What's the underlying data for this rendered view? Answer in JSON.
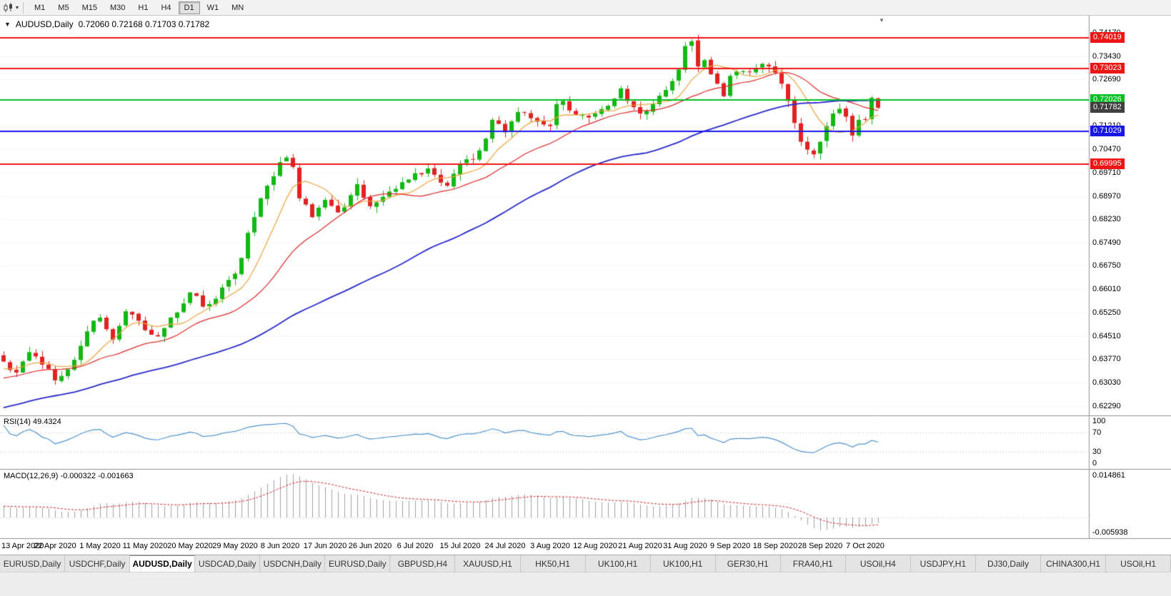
{
  "toolbar": {
    "chart_type_icon": "candlestick-chart",
    "dropdown_caret": "▾",
    "timeframes": [
      {
        "label": "M1",
        "active": false
      },
      {
        "label": "M5",
        "active": false
      },
      {
        "label": "M15",
        "active": false
      },
      {
        "label": "M30",
        "active": false
      },
      {
        "label": "H1",
        "active": false
      },
      {
        "label": "H4",
        "active": false
      },
      {
        "label": "D1",
        "active": true
      },
      {
        "label": "W1",
        "active": false
      },
      {
        "label": "MN",
        "active": false
      }
    ]
  },
  "chart_header": {
    "collapse_icon": "▼",
    "shift_marker_icon": "▼",
    "symbol": "AUDUSD,Daily",
    "ohlc": "0.72060 0.72168 0.71703 0.71782"
  },
  "chart_data": {
    "type": "candlestick",
    "symbol": "AUDUSD",
    "period": "Daily",
    "open": 0.7206,
    "high": 0.72168,
    "low": 0.71703,
    "close": 0.71782,
    "y_axis": {
      "price_min": 0.6212,
      "price_max": 0.7458,
      "tick_labels": [
        "0.74170",
        "0.73430",
        "0.72690",
        "0.71210",
        "0.70470",
        "0.69710",
        "0.68970",
        "0.68230",
        "0.67490",
        "0.66750",
        "0.66010",
        "0.65250",
        "0.64510",
        "0.63770",
        "0.63030",
        "0.62290"
      ]
    },
    "x_axis": {
      "labels": [
        "13 Apr 2020",
        "22 Apr 2020",
        "1 May 2020",
        "11 May 2020",
        "20 May 2020",
        "29 May 2020",
        "8 Jun 2020",
        "17 Jun 2020",
        "26 Jun 2020",
        "6 Jul 2020",
        "15 Jul 2020",
        "24 Jul 2020",
        "3 Aug 2020",
        "12 Aug 2020",
        "21 Aug 2020",
        "31 Aug 2020",
        "9 Sep 2020",
        "18 Sep 2020",
        "28 Sep 2020",
        "7 Oct 2020"
      ],
      "first_label_index": 1,
      "label_step": 7,
      "num_candles": 137
    },
    "price_keyframes": [
      [
        0,
        0.637
      ],
      [
        2,
        0.6335
      ],
      [
        4,
        0.64
      ],
      [
        6,
        0.636
      ],
      [
        8,
        0.631
      ],
      [
        10,
        0.6345
      ],
      [
        12,
        0.642
      ],
      [
        14,
        0.65
      ],
      [
        15,
        0.651
      ],
      [
        17,
        0.644
      ],
      [
        19,
        0.653
      ],
      [
        21,
        0.65
      ],
      [
        22,
        0.647
      ],
      [
        24,
        0.645
      ],
      [
        26,
        0.651
      ],
      [
        28,
        0.6555
      ],
      [
        29,
        0.659
      ],
      [
        31,
        0.6545
      ],
      [
        33,
        0.657
      ],
      [
        35,
        0.663
      ],
      [
        36,
        0.665
      ],
      [
        37,
        0.67
      ],
      [
        38,
        0.678
      ],
      [
        39,
        0.683
      ],
      [
        40,
        0.689
      ],
      [
        41,
        0.693
      ],
      [
        42,
        0.696
      ],
      [
        43,
        0.7005
      ],
      [
        44,
        0.702
      ],
      [
        45,
        0.699
      ],
      [
        46,
        0.689
      ],
      [
        47,
        0.687
      ],
      [
        48,
        0.683
      ],
      [
        49,
        0.686
      ],
      [
        50,
        0.6885
      ],
      [
        52,
        0.6845
      ],
      [
        54,
        0.69
      ],
      [
        55,
        0.6935
      ],
      [
        57,
        0.6865
      ],
      [
        59,
        0.6895
      ],
      [
        61,
        0.692
      ],
      [
        63,
        0.695
      ],
      [
        64,
        0.697
      ],
      [
        66,
        0.6985
      ],
      [
        68,
        0.694
      ],
      [
        69,
        0.693
      ],
      [
        71,
        0.7
      ],
      [
        73,
        0.7015
      ],
      [
        75,
        0.708
      ],
      [
        76,
        0.714
      ],
      [
        78,
        0.71
      ],
      [
        80,
        0.7165
      ],
      [
        82,
        0.7145
      ],
      [
        84,
        0.7125
      ],
      [
        85,
        0.712
      ],
      [
        86,
        0.719
      ],
      [
        87,
        0.72
      ],
      [
        88,
        0.717
      ],
      [
        90,
        0.7155
      ],
      [
        92,
        0.716
      ],
      [
        94,
        0.7185
      ],
      [
        96,
        0.724
      ],
      [
        97,
        0.72
      ],
      [
        99,
        0.716
      ],
      [
        101,
        0.719
      ],
      [
        103,
        0.7235
      ],
      [
        105,
        0.73
      ],
      [
        106,
        0.7375
      ],
      [
        107,
        0.739
      ],
      [
        108,
        0.731
      ],
      [
        109,
        0.733
      ],
      [
        110,
        0.7285
      ],
      [
        111,
        0.7255
      ],
      [
        112,
        0.7215
      ],
      [
        113,
        0.728
      ],
      [
        115,
        0.7295
      ],
      [
        117,
        0.7305
      ],
      [
        119,
        0.731
      ],
      [
        120,
        0.729
      ],
      [
        121,
        0.7255
      ],
      [
        122,
        0.72
      ],
      [
        123,
        0.713
      ],
      [
        124,
        0.707
      ],
      [
        125,
        0.7045
      ],
      [
        126,
        0.703
      ],
      [
        127,
        0.707
      ],
      [
        128,
        0.712
      ],
      [
        129,
        0.716
      ],
      [
        130,
        0.7175
      ],
      [
        131,
        0.715
      ],
      [
        132,
        0.709
      ],
      [
        133,
        0.714
      ],
      [
        134,
        0.714
      ],
      [
        135,
        0.721
      ],
      [
        136,
        0.71782
      ]
    ],
    "horizontal_lines": [
      {
        "value": 0.74019,
        "label": "0.74019",
        "color": "#ef1515"
      },
      {
        "value": 0.73023,
        "label": "0.73023",
        "color": "#ef1515"
      },
      {
        "value": 0.72026,
        "label": "0.72026",
        "color": "#00bf22"
      },
      {
        "value": 0.71029,
        "label": "0.71029",
        "color": "#1717e8"
      },
      {
        "value": 0.69995,
        "label": "0.69995",
        "color": "#ef1515"
      }
    ],
    "current_price": {
      "value": 0.71782,
      "label": "0.71782",
      "badge_color": "#3f3f3f"
    },
    "moving_averages": [
      {
        "period": 8,
        "color": "#eda33c"
      },
      {
        "period": 20,
        "color": "#e02828"
      },
      {
        "period": 55,
        "color": "#2929cc"
      }
    ],
    "candle_colors": {
      "up": "#14b714",
      "down": "#e22222"
    },
    "indicators": {
      "rsi": {
        "title": "RSI(14) 49.4324",
        "period": 14,
        "value": 49.4324,
        "levels": [
          "100",
          "70",
          "30",
          "0"
        ],
        "line_color": "#4f94cd"
      },
      "macd": {
        "title": "MACD(12,26,9) -0.000322 -0.001663",
        "macd_value": -0.000322,
        "signal_value": -0.001663,
        "axis_max": "0.014861",
        "axis_min": "-0.005938",
        "histogram_color": "#a0a0a0",
        "signal_color": "#d42a2a"
      }
    }
  },
  "bottom_tabs": [
    {
      "label": "EURUSD,Daily",
      "active": false
    },
    {
      "label": "USDCHF,Daily",
      "active": false
    },
    {
      "label": "AUDUSD,Daily",
      "active": true
    },
    {
      "label": "USDCAD,Daily",
      "active": false
    },
    {
      "label": "USDCNH,Daily",
      "active": false
    },
    {
      "label": "EURUSD,Daily",
      "active": false
    },
    {
      "label": "GBPUSD,H4",
      "active": false
    },
    {
      "label": "XAUUSD,H1",
      "active": false
    },
    {
      "label": "HK50,H1",
      "active": false
    },
    {
      "label": "UK100,H1",
      "active": false
    },
    {
      "label": "UK100,H1",
      "active": false
    },
    {
      "label": "GER30,H1",
      "active": false
    },
    {
      "label": "FRA40,H1",
      "active": false
    },
    {
      "label": "USOil,H4",
      "active": false
    },
    {
      "label": "USDJPY,H1",
      "active": false
    },
    {
      "label": "DJ30,Daily",
      "active": false
    },
    {
      "label": "CHINA300,H1",
      "active": false
    },
    {
      "label": "USOil,H1",
      "active": false
    }
  ]
}
